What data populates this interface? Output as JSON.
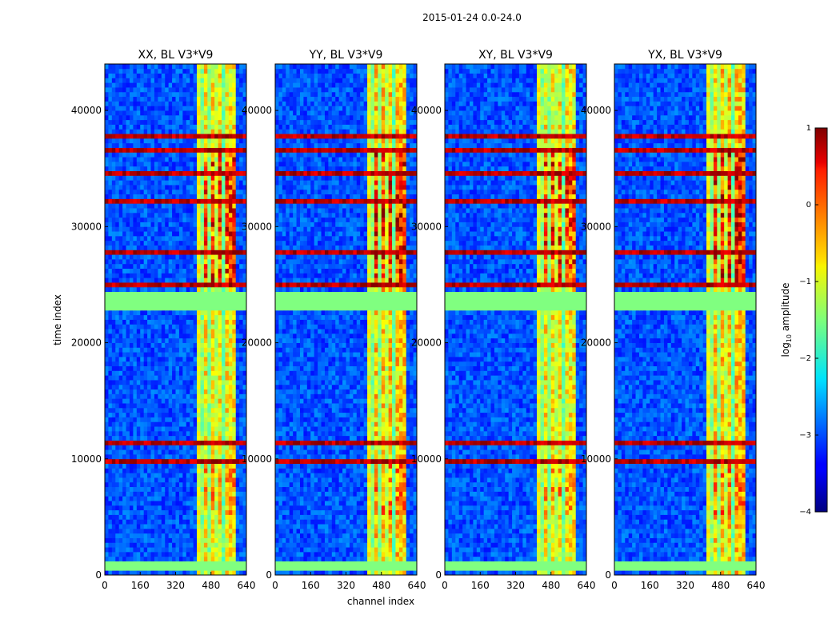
{
  "figure": {
    "suptitle": "2015-01-24 0.0-24.0"
  },
  "chart_data": {
    "type": "heatmap",
    "title": "2015-01-24 0.0-24.0",
    "xlabel": "channel index",
    "ylabel": "time index",
    "xlim": [
      0,
      640
    ],
    "ylim": [
      0,
      44000
    ],
    "xticks": [
      0,
      160,
      320,
      480,
      640
    ],
    "yticks": [
      0,
      10000,
      20000,
      30000,
      40000
    ],
    "xtick_labels": [
      "0",
      "160",
      "320",
      "480",
      "640"
    ],
    "ytick_labels": [
      "0",
      "10000",
      "20000",
      "30000",
      "40000"
    ],
    "panels": [
      {
        "title": "XX, BL V3*V9",
        "pol": "XX"
      },
      {
        "title": "YY, BL V3*V9",
        "pol": "YY"
      },
      {
        "title": "XY, BL V3*V9",
        "pol": "XY"
      },
      {
        "title": "YX, BL V3*V9",
        "pol": "YX"
      }
    ],
    "colorbar": {
      "label": "log10 amplitude",
      "label_main": "log",
      "label_sub": "10",
      "label_rest": " amplitude",
      "range": [
        -4,
        1
      ],
      "ticks": [
        1,
        0,
        -1,
        -2,
        -3,
        -4
      ],
      "tick_labels": [
        "1",
        "0",
        "−1",
        "−2",
        "−3",
        "−4"
      ],
      "colormap": "jet"
    },
    "features": {
      "bright_channel_range": [
        410,
        600
      ],
      "saturated_time_bands": [
        [
          22800,
          24400
        ],
        [
          400,
          1000
        ]
      ],
      "high_rfi_time_rows": [
        37800,
        36700,
        34500,
        32200,
        29200,
        27800,
        24900,
        11400,
        9900
      ]
    }
  }
}
